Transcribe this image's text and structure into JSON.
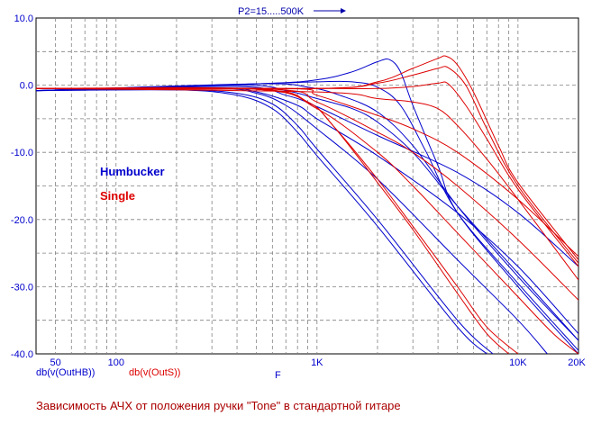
{
  "chart_data": {
    "type": "line",
    "caption": "Зависимость АЧХ от положения ручки \"Tone\" в стандартной гитаре",
    "sweep_label": "P2=15.....500K",
    "xlabel": "F",
    "xscale": "log",
    "xlim": [
      40,
      20000
    ],
    "ylim": [
      -40,
      10
    ],
    "x_ticks": [
      {
        "value": 50,
        "label": "50"
      },
      {
        "value": 100,
        "label": "100"
      },
      {
        "value": 1000,
        "label": "1K"
      },
      {
        "value": 10000,
        "label": "10K"
      },
      {
        "value": 20000,
        "label": "20K"
      }
    ],
    "y_ticks": [
      {
        "value": 10,
        "label": "10.0"
      },
      {
        "value": 0,
        "label": "0.0"
      },
      {
        "value": -10,
        "label": "-10.0"
      },
      {
        "value": -20,
        "label": "-20.0"
      },
      {
        "value": -30,
        "label": "-30.0"
      },
      {
        "value": -40,
        "label": "-40.0"
      }
    ],
    "grid": true,
    "axis_trace_labels": [
      {
        "text": "db(v(OutHB))",
        "color": "#0000cc"
      },
      {
        "text": "db(v(OutS))",
        "color": "#dd0000"
      }
    ],
    "legend": [
      {
        "text": "Humbucker",
        "color": "#0000cc"
      },
      {
        "text": "Single",
        "color": "#dd0000"
      }
    ],
    "series": [
      {
        "group": "Humbucker",
        "color": "#0000cc",
        "points": [
          [
            40,
            -0.8
          ],
          [
            200,
            -0.7
          ],
          [
            400,
            -1.5
          ],
          [
            600,
            -3.5
          ],
          [
            800,
            -7
          ],
          [
            1000,
            -10.5
          ],
          [
            2000,
            -21
          ],
          [
            5000,
            -36
          ],
          [
            7000,
            -40
          ]
        ]
      },
      {
        "group": "Humbucker",
        "color": "#0000cc",
        "points": [
          [
            40,
            -0.8
          ],
          [
            200,
            -0.7
          ],
          [
            400,
            -1.2
          ],
          [
            600,
            -2.8
          ],
          [
            800,
            -6
          ],
          [
            1000,
            -9.5
          ],
          [
            2000,
            -20
          ],
          [
            5000,
            -35
          ],
          [
            7500,
            -40
          ]
        ]
      },
      {
        "group": "Humbucker",
        "color": "#0000cc",
        "points": [
          [
            40,
            -0.8
          ],
          [
            300,
            -0.5
          ],
          [
            500,
            -1.2
          ],
          [
            700,
            -3
          ],
          [
            1000,
            -6.5
          ],
          [
            2000,
            -14
          ],
          [
            5000,
            -26
          ],
          [
            10000,
            -35
          ],
          [
            14000,
            -40
          ]
        ]
      },
      {
        "group": "Humbucker",
        "color": "#0000cc",
        "points": [
          [
            40,
            -0.8
          ],
          [
            300,
            -0.4
          ],
          [
            500,
            -1
          ],
          [
            800,
            -3
          ],
          [
            1000,
            -5
          ],
          [
            2000,
            -10.5
          ],
          [
            5000,
            -19
          ],
          [
            10000,
            -27
          ],
          [
            20000,
            -37
          ]
        ]
      },
      {
        "group": "Humbucker",
        "color": "#0000cc",
        "points": [
          [
            40,
            -0.8
          ],
          [
            400,
            -0.2
          ],
          [
            700,
            -1.5
          ],
          [
            1000,
            -3.2
          ],
          [
            2000,
            -7.5
          ],
          [
            5000,
            -13
          ],
          [
            10000,
            -19
          ],
          [
            20000,
            -27
          ]
        ]
      },
      {
        "group": "Humbucker",
        "color": "#0000cc",
        "points": [
          [
            40,
            -0.8
          ],
          [
            400,
            0
          ],
          [
            700,
            -0.8
          ],
          [
            1000,
            -2
          ],
          [
            1500,
            -3.5
          ],
          [
            2000,
            -5.5
          ],
          [
            3000,
            -10
          ],
          [
            5000,
            -18
          ],
          [
            10000,
            -28
          ],
          [
            20000,
            -38
          ]
        ]
      },
      {
        "group": "Humbucker",
        "color": "#0000cc",
        "points": [
          [
            40,
            -0.8
          ],
          [
            500,
            0.2
          ],
          [
            900,
            -0.3
          ],
          [
            1300,
            -1.5
          ],
          [
            2000,
            -4
          ],
          [
            3000,
            -9
          ],
          [
            5000,
            -18
          ],
          [
            10000,
            -28.5
          ],
          [
            20000,
            -38
          ]
        ]
      },
      {
        "group": "Humbucker",
        "color": "#0000cc",
        "points": [
          [
            40,
            -0.8
          ],
          [
            500,
            0.2
          ],
          [
            1000,
            0.5
          ],
          [
            1500,
            0.5
          ],
          [
            2000,
            -0.3
          ],
          [
            2600,
            -3
          ],
          [
            3500,
            -10
          ],
          [
            5000,
            -19
          ],
          [
            10000,
            -29.5
          ],
          [
            20000,
            -39.5
          ]
        ]
      },
      {
        "group": "Humbucker",
        "color": "#0000cc",
        "points": [
          [
            40,
            -0.8
          ],
          [
            500,
            0.2
          ],
          [
            1000,
            0.8
          ],
          [
            1500,
            2
          ],
          [
            2000,
            3.5
          ],
          [
            2300,
            3.8
          ],
          [
            2600,
            2
          ],
          [
            3000,
            -3
          ],
          [
            4000,
            -12
          ],
          [
            5000,
            -19
          ],
          [
            10000,
            -30
          ],
          [
            20000,
            -40
          ]
        ]
      },
      {
        "group": "Single",
        "color": "#dd0000",
        "points": [
          [
            40,
            -0.5
          ],
          [
            500,
            -0.6
          ],
          [
            900,
            -2.5
          ],
          [
            1200,
            -6
          ],
          [
            2000,
            -14
          ],
          [
            3000,
            -21
          ],
          [
            5000,
            -30
          ],
          [
            7000,
            -36
          ],
          [
            10000,
            -40
          ]
        ]
      },
      {
        "group": "Single",
        "color": "#dd0000",
        "points": [
          [
            40,
            -0.5
          ],
          [
            500,
            -0.6
          ],
          [
            900,
            -2.5
          ],
          [
            1200,
            -6
          ],
          [
            2000,
            -14.5
          ],
          [
            3000,
            -21.5
          ],
          [
            5000,
            -31
          ],
          [
            7000,
            -37
          ],
          [
            9000,
            -40
          ]
        ]
      },
      {
        "group": "Single",
        "color": "#dd0000",
        "points": [
          [
            40,
            -0.5
          ],
          [
            500,
            -0.6
          ],
          [
            1000,
            -3.5
          ],
          [
            2000,
            -10
          ],
          [
            3000,
            -15
          ],
          [
            5000,
            -22
          ],
          [
            10000,
            -31.5
          ],
          [
            15000,
            -37
          ],
          [
            20000,
            -40
          ]
        ]
      },
      {
        "group": "Single",
        "color": "#dd0000",
        "points": [
          [
            40,
            -0.5
          ],
          [
            600,
            -0.6
          ],
          [
            1000,
            -2.5
          ],
          [
            2000,
            -7
          ],
          [
            3000,
            -10
          ],
          [
            5000,
            -15
          ],
          [
            10000,
            -23
          ],
          [
            20000,
            -32
          ]
        ]
      },
      {
        "group": "Single",
        "color": "#dd0000",
        "points": [
          [
            40,
            -0.5
          ],
          [
            700,
            -0.5
          ],
          [
            1000,
            -1.5
          ],
          [
            2000,
            -4.5
          ],
          [
            3000,
            -6.5
          ],
          [
            5000,
            -10
          ],
          [
            10000,
            -17
          ],
          [
            20000,
            -25.5
          ]
        ]
      },
      {
        "group": "Single",
        "color": "#dd0000",
        "points": [
          [
            40,
            -0.5
          ],
          [
            1000,
            -1
          ],
          [
            2000,
            -2
          ],
          [
            3000,
            -2.5
          ],
          [
            4000,
            -3.5
          ],
          [
            5000,
            -6
          ],
          [
            7000,
            -11
          ],
          [
            10000,
            -17
          ],
          [
            20000,
            -29
          ]
        ]
      },
      {
        "group": "Single",
        "color": "#dd0000",
        "points": [
          [
            40,
            -0.5
          ],
          [
            1000,
            -0.5
          ],
          [
            2000,
            -0.5
          ],
          [
            3000,
            -0.2
          ],
          [
            4000,
            0.3
          ],
          [
            4500,
            0.2
          ],
          [
            5500,
            -3
          ],
          [
            7000,
            -8
          ],
          [
            10000,
            -15.5
          ],
          [
            20000,
            -27
          ]
        ]
      },
      {
        "group": "Single",
        "color": "#dd0000",
        "points": [
          [
            40,
            -0.5
          ],
          [
            1000,
            -0.5
          ],
          [
            2000,
            0.3
          ],
          [
            3000,
            1.5
          ],
          [
            4000,
            2.5
          ],
          [
            4500,
            2.6
          ],
          [
            5500,
            0
          ],
          [
            7000,
            -6.5
          ],
          [
            10000,
            -15
          ],
          [
            20000,
            -26.5
          ]
        ]
      },
      {
        "group": "Single",
        "color": "#dd0000",
        "points": [
          [
            40,
            -0.5
          ],
          [
            1000,
            -0.5
          ],
          [
            2000,
            0.5
          ],
          [
            3000,
            2.5
          ],
          [
            4000,
            4
          ],
          [
            4400,
            4.3
          ],
          [
            5000,
            3
          ],
          [
            6000,
            -1
          ],
          [
            8000,
            -9
          ],
          [
            10000,
            -14.5
          ],
          [
            20000,
            -26
          ]
        ]
      }
    ]
  }
}
